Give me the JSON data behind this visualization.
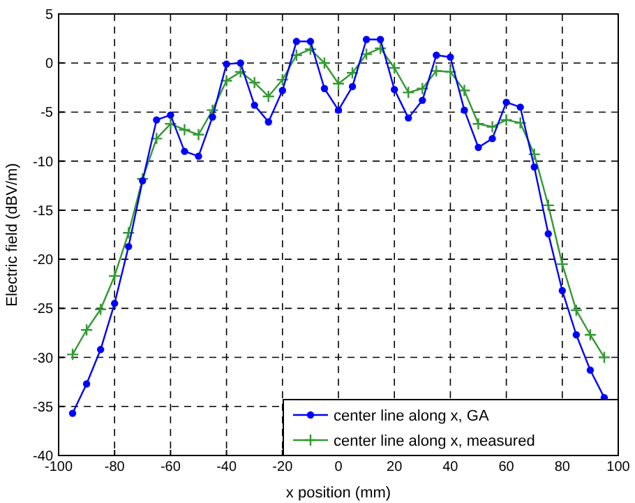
{
  "chart_data": {
    "type": "line",
    "xlabel": "x position (mm)",
    "ylabel": "Electric field (dBV/m)",
    "x": [
      -95,
      -90,
      -85,
      -80,
      -75,
      -70,
      -65,
      -60,
      -55,
      -50,
      -45,
      -40,
      -35,
      -30,
      -25,
      -20,
      -15,
      -10,
      -5,
      0,
      5,
      10,
      15,
      20,
      25,
      30,
      35,
      40,
      45,
      50,
      55,
      60,
      65,
      70,
      75,
      80,
      85,
      90,
      95
    ],
    "series": [
      {
        "name": "center line along x, GA",
        "color": "#0000ff",
        "marker": "circle",
        "values": [
          -35.7,
          -32.7,
          -29.2,
          -24.5,
          -18.7,
          -12,
          -5.8,
          -5.3,
          -9,
          -9.5,
          -5.5,
          -0.1,
          0,
          -4.3,
          -6,
          -2.8,
          2.2,
          2.2,
          -2.6,
          -4.8,
          -2.4,
          2.4,
          2.4,
          -2.7,
          -5.6,
          -3.8,
          0.8,
          0.6,
          -4.8,
          -8.6,
          -7.7,
          -4,
          -4.5,
          -10.6,
          -17.4,
          -23.2,
          -27.7,
          -31.3,
          -34.1
        ]
      },
      {
        "name": "center line along x, measured",
        "color": "#339933",
        "marker": "cross",
        "values": [
          -29.7,
          -27.2,
          -25.1,
          -21.7,
          -17.3,
          -11.8,
          -7.7,
          -6.2,
          -6.8,
          -7.3,
          -4.8,
          -1.8,
          -0.9,
          -2,
          -3.4,
          -1.7,
          0.8,
          1.4,
          0,
          -2.1,
          -1,
          0.9,
          1.5,
          -0.5,
          -3,
          -2.6,
          -0.8,
          -0.9,
          -2.8,
          -6.2,
          -6.5,
          -5.8,
          -6.1,
          -9.3,
          -14.5,
          -20.5,
          -25.2,
          -27.7,
          -30
        ]
      }
    ],
    "xlim": [
      -100,
      100
    ],
    "xticks": [
      -100,
      -80,
      -60,
      -40,
      -20,
      0,
      20,
      40,
      60,
      80,
      100
    ],
    "ylim": [
      -40,
      5
    ],
    "yticks": [
      -40,
      -35,
      -30,
      -25,
      -20,
      -15,
      -10,
      -5,
      0,
      5
    ],
    "grid": true,
    "legend": "bottom right",
    "line_style": "solid"
  }
}
